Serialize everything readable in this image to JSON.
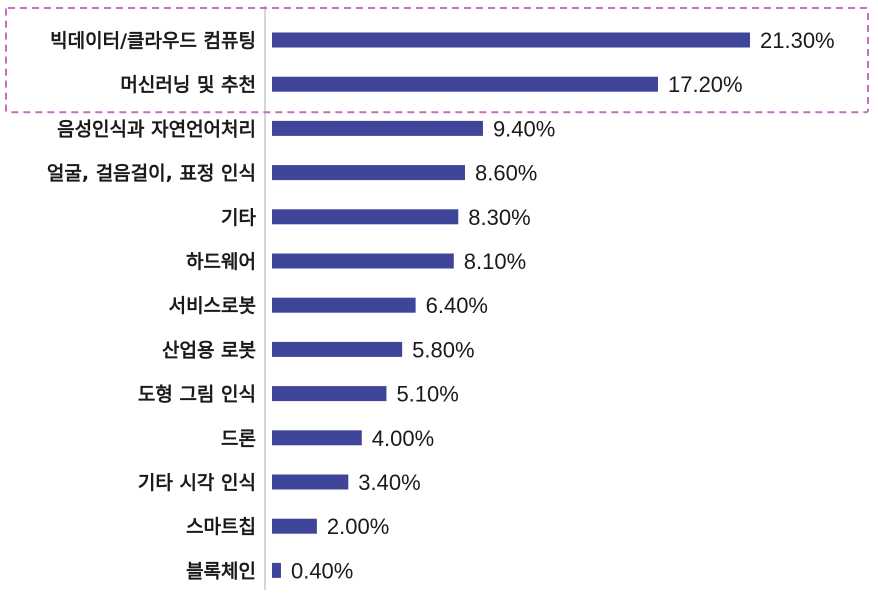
{
  "chart_data": {
    "type": "bar",
    "orientation": "horizontal",
    "title": "",
    "xlabel": "",
    "ylabel": "",
    "categories": [
      "빅데이터/클라우드 컴퓨팅",
      "머신러닝 및 추천",
      "음성인식과 자연언어처리",
      "얼굴, 걸음걸이, 표정 인식",
      "기타",
      "하드웨어",
      "서비스로봇",
      "산업용 로봇",
      "도형 그림 인식",
      "드론",
      "기타 시각 인식",
      "스마트칩",
      "블록체인"
    ],
    "values": [
      21.3,
      17.2,
      9.4,
      8.6,
      8.3,
      8.1,
      6.4,
      5.8,
      5.1,
      4.0,
      3.4,
      2.0,
      0.4
    ],
    "value_labels": [
      "21.30%",
      "17.20%",
      "9.40%",
      "8.60%",
      "8.30%",
      "8.10%",
      "6.40%",
      "5.80%",
      "5.10%",
      "4.00%",
      "3.40%",
      "2.00%",
      "0.40%"
    ],
    "unit": "%",
    "xlim": [
      0,
      21.3
    ],
    "grid": false,
    "legend": "none",
    "bar_color": "#3f4599",
    "highlight_categories": [
      0,
      1
    ],
    "highlight_color": "#c86fc0"
  }
}
